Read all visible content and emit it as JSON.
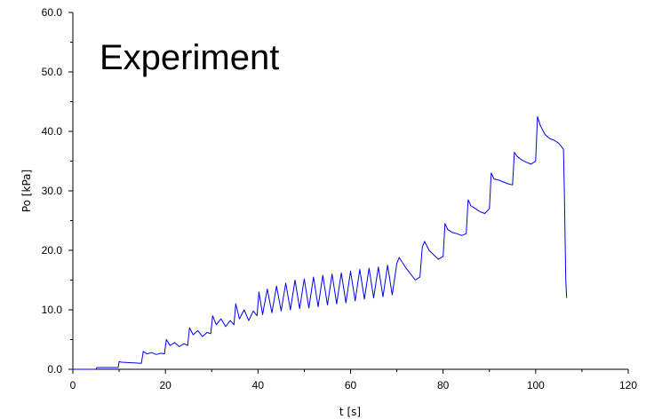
{
  "chart_data": {
    "type": "line",
    "title": "Experiment",
    "xlabel": "t [s]",
    "ylabel": "Po [kPa]",
    "xlim": [
      0,
      120
    ],
    "ylim": [
      0,
      60
    ],
    "x_ticks": [
      0,
      20,
      40,
      60,
      80,
      100,
      120
    ],
    "y_ticks": [
      0,
      10,
      20,
      30,
      40,
      50,
      60
    ],
    "x_tick_labels": [
      "0",
      "20",
      "40",
      "60",
      "80",
      "100",
      "120"
    ],
    "y_tick_labels": [
      "0.0",
      "10.0",
      "20.0",
      "30.0",
      "40.0",
      "50.0",
      "60.0"
    ],
    "grid": false,
    "legend": "none",
    "series_color": "#0000ee",
    "series": [
      {
        "values": {
          "x": [
            0,
            5,
            5.2,
            9.8,
            10,
            10.5,
            14.8,
            15.2,
            16,
            17,
            18,
            19,
            19.8,
            20.2,
            21,
            22,
            23,
            24,
            24.8,
            25.2,
            26,
            27,
            28,
            29,
            29.8,
            30.2,
            31,
            32,
            33,
            34,
            34.8,
            35.2,
            36,
            37,
            38,
            39,
            39.8,
            40.2,
            41,
            42,
            43,
            44,
            45,
            46,
            47,
            48,
            49,
            50,
            51,
            52,
            53,
            54,
            55,
            56,
            57,
            58,
            59,
            60,
            61,
            62,
            63,
            64,
            65,
            66,
            67,
            68,
            69,
            70,
            70.5,
            72,
            74,
            75,
            75.5,
            76,
            77,
            78,
            79,
            80,
            80.4,
            81,
            82,
            83,
            84,
            85,
            85.4,
            86,
            87,
            88,
            89,
            90,
            90.4,
            91,
            92,
            93,
            94,
            95,
            95.4,
            96,
            97,
            98,
            99,
            100,
            100.4,
            101,
            102,
            103,
            104,
            105,
            106,
            106.2,
            106.5,
            106.7
          ],
          "y": [
            0,
            0,
            0.3,
            0.3,
            1.3,
            1.2,
            1.0,
            3.0,
            2.6,
            2.8,
            2.5,
            2.7,
            2.6,
            5.0,
            4.0,
            4.5,
            3.8,
            4.3,
            4.0,
            7.0,
            5.8,
            6.5,
            5.5,
            6.2,
            6.0,
            9.0,
            7.5,
            8.5,
            7.2,
            8.2,
            7.5,
            11.0,
            8.5,
            10.0,
            8.2,
            9.8,
            9.0,
            13.0,
            9.2,
            13.5,
            9.5,
            14.0,
            9.8,
            14.5,
            10.0,
            15.0,
            10.2,
            15.2,
            10.3,
            15.5,
            10.5,
            15.8,
            10.8,
            16.0,
            11.0,
            16.2,
            11.2,
            16.5,
            11.5,
            16.8,
            11.8,
            17.0,
            12.0,
            17.2,
            12.2,
            17.5,
            12.5,
            17.8,
            18.8,
            17.0,
            15.0,
            15.5,
            20.5,
            21.5,
            20.0,
            19.2,
            18.5,
            19.0,
            24.5,
            23.5,
            23.0,
            22.8,
            22.5,
            22.8,
            28.5,
            27.5,
            27.0,
            26.5,
            26.2,
            27.0,
            33.0,
            32.0,
            31.8,
            31.5,
            31.2,
            31.0,
            36.5,
            35.8,
            35.2,
            34.8,
            34.5,
            35.0,
            42.5,
            41.0,
            39.5,
            38.8,
            38.5,
            38.0,
            37.0,
            30.0,
            15.0,
            12.0
          ]
        }
      }
    ]
  }
}
